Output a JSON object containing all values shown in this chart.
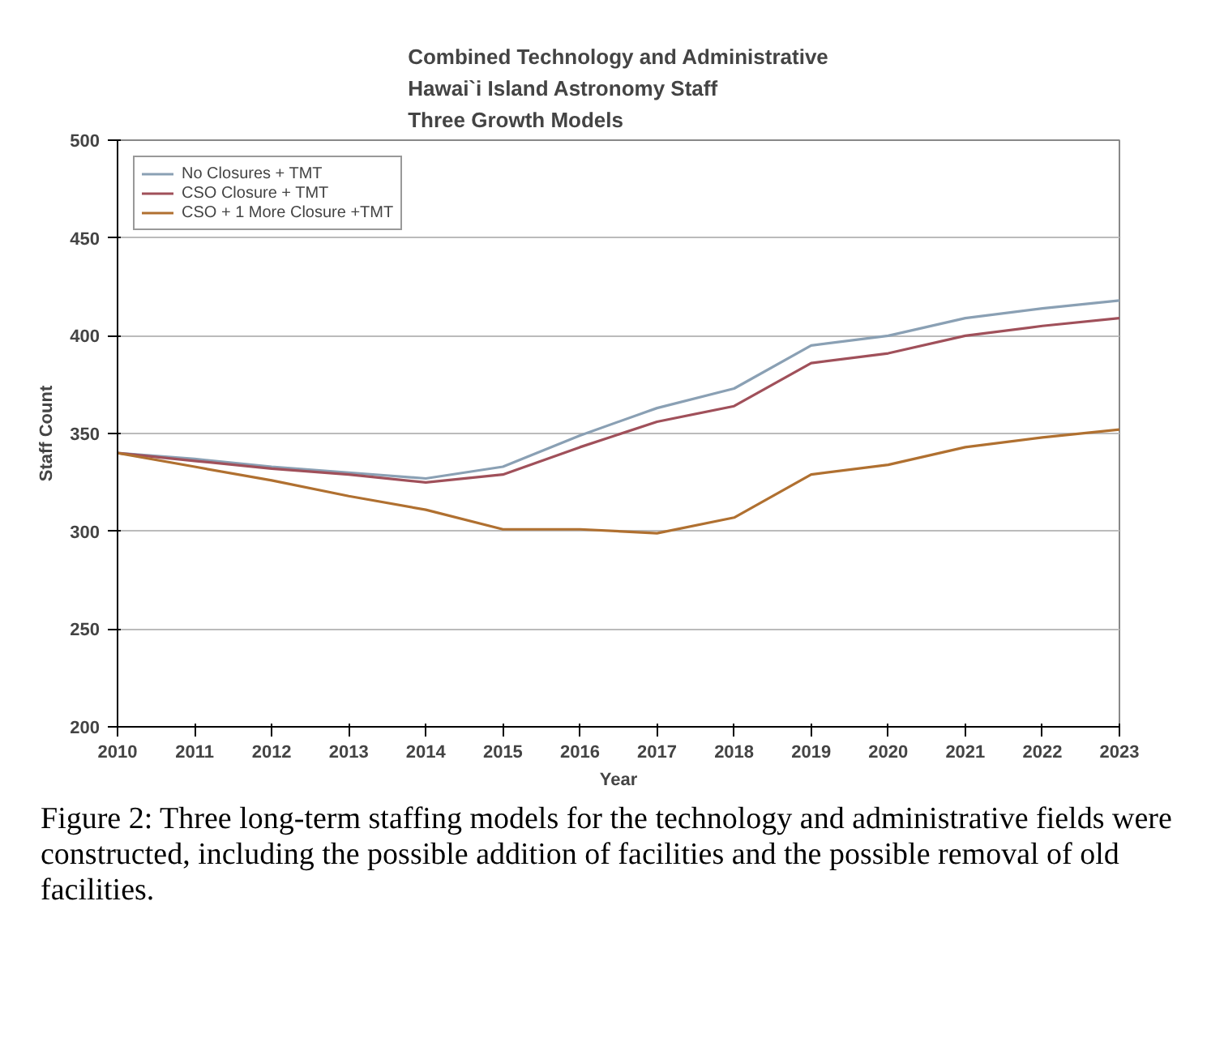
{
  "chart_data": {
    "type": "line",
    "title": "Combined Technology and Administrative\nHawai`i Island Astronomy Staff\nThree Growth Models",
    "xlabel": "Year",
    "ylabel": "Staff Count",
    "x": [
      2010,
      2011,
      2012,
      2013,
      2014,
      2015,
      2016,
      2017,
      2018,
      2019,
      2020,
      2021,
      2022,
      2023
    ],
    "series": [
      {
        "name": "No Closures + TMT",
        "color": "#8aa0b4",
        "values": [
          340,
          337,
          333,
          330,
          327,
          333,
          349,
          363,
          373,
          395,
          400,
          409,
          414,
          418
        ]
      },
      {
        "name": "CSO Closure + TMT",
        "color": "#a0505a",
        "values": [
          340,
          336,
          332,
          329,
          325,
          329,
          343,
          356,
          364,
          386,
          391,
          400,
          405,
          409
        ]
      },
      {
        "name": "CSO + 1 More Closure +TMT",
        "color": "#b07030",
        "values": [
          340,
          333,
          326,
          318,
          311,
          301,
          301,
          299,
          307,
          329,
          334,
          343,
          348,
          352
        ]
      }
    ],
    "xlim": [
      2010,
      2023
    ],
    "ylim": [
      200,
      500
    ],
    "xticks": [
      2010,
      2011,
      2012,
      2013,
      2014,
      2015,
      2016,
      2017,
      2018,
      2019,
      2020,
      2021,
      2022,
      2023
    ],
    "yticks": [
      200,
      250,
      300,
      350,
      400,
      450,
      500
    ],
    "grid": "y",
    "legend": "top left",
    "marker": "none",
    "line_style": "solid",
    "annotations": [
      "Figure 2:  Three long-term staffing models for the technology and administrative fields were constructed, including the possible addition of facilities and the possible removal of old facilities."
    ]
  }
}
